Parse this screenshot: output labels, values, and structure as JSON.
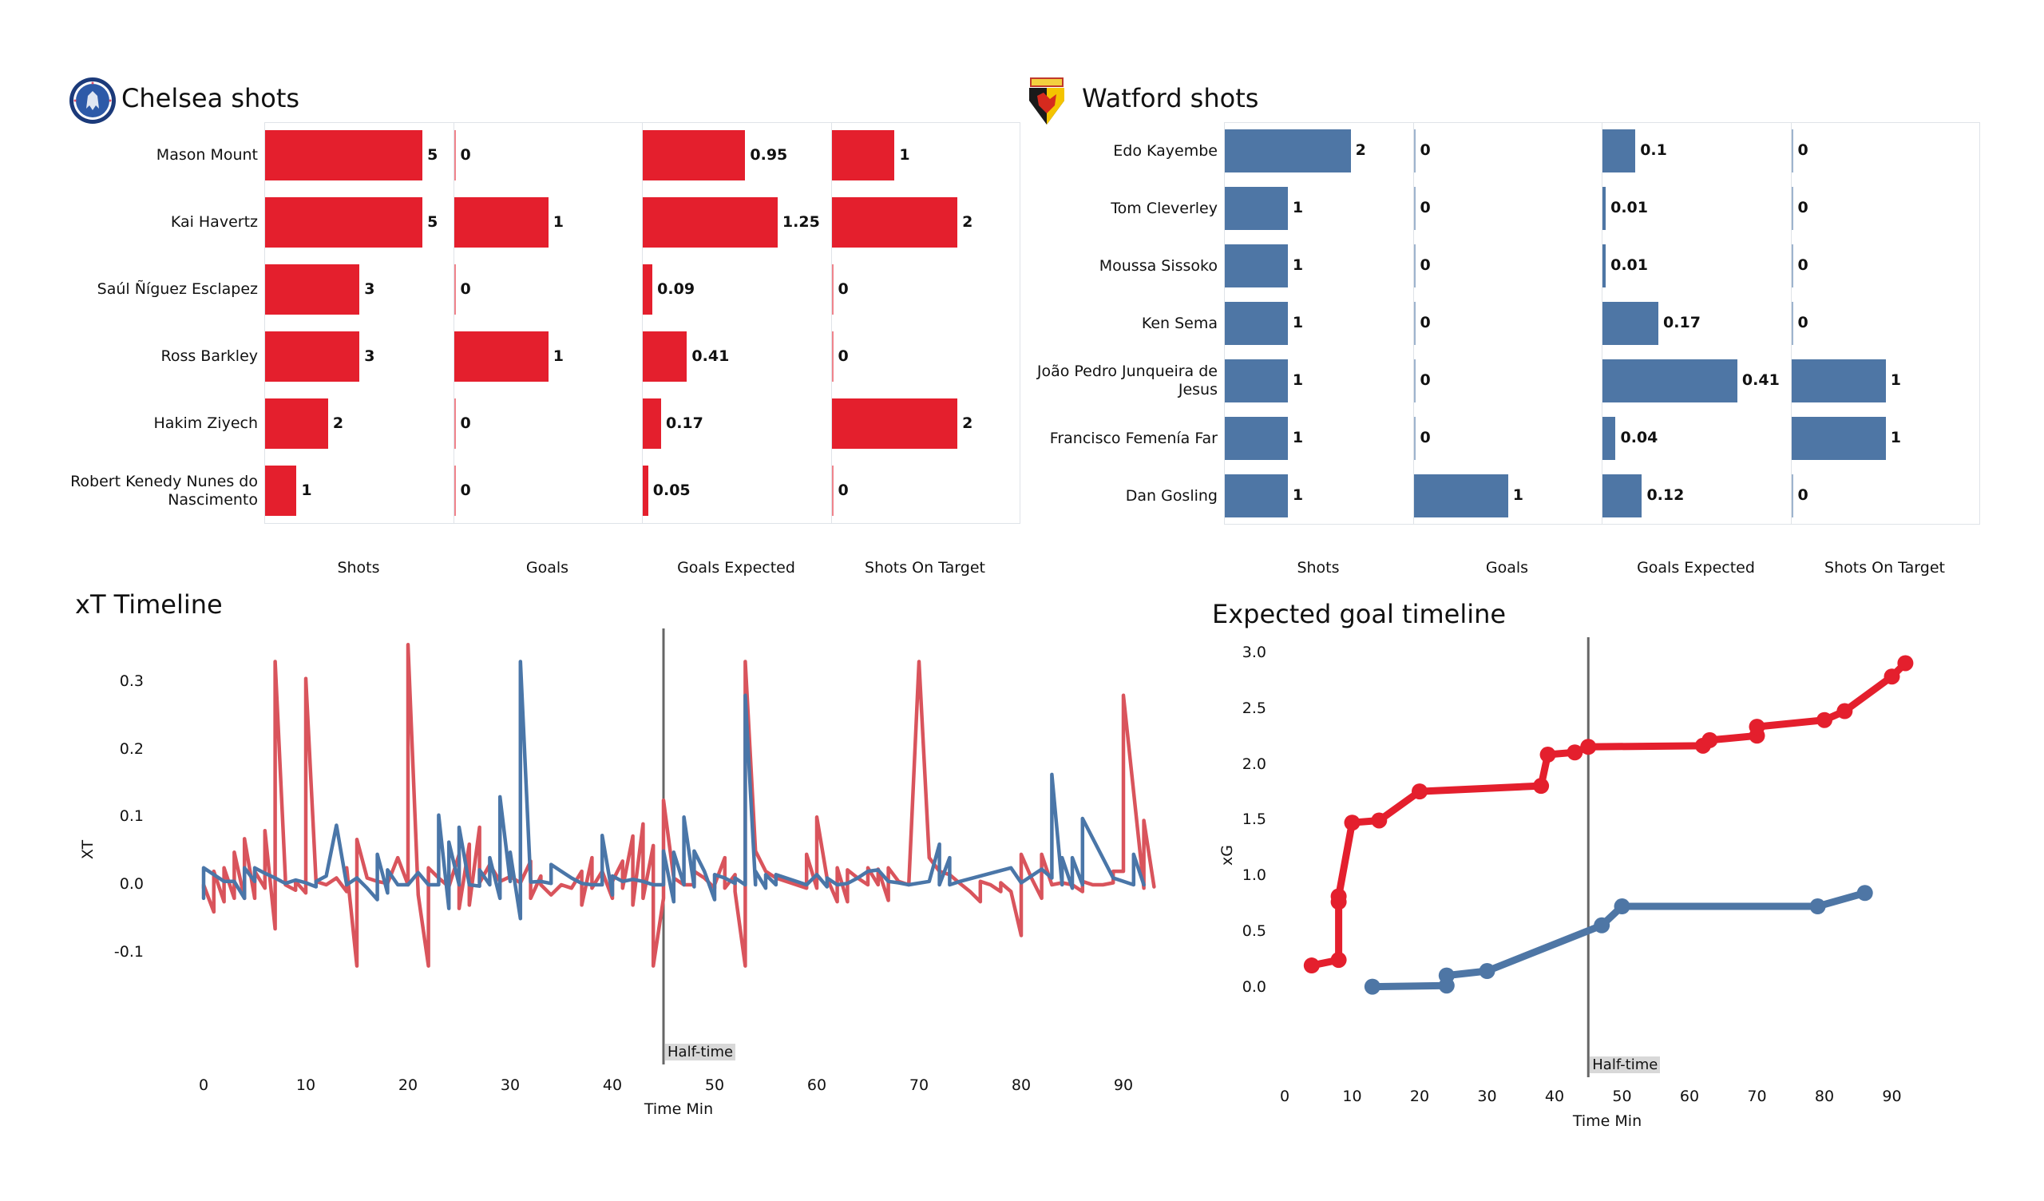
{
  "colors": {
    "chelsea_bar": "#e41f2d",
    "watford_bar": "#4e76a5",
    "chelsea_line": "#d9545c",
    "watford_line": "#4a76a8",
    "xg_chelsea": "#e41f2d",
    "xg_watford": "#4e76a5"
  },
  "chelsea": {
    "title": "Chelsea shots",
    "logo": "chelsea-crest-icon"
  },
  "watford": {
    "title": "Watford shots",
    "logo": "watford-crest-icon"
  },
  "chart_data": [
    {
      "type": "bar",
      "orientation": "horizontal",
      "title": "Chelsea shots",
      "metrics": [
        "Shots",
        "Goals",
        "Goals Expected",
        "Shots On Target"
      ],
      "categories": [
        "Mason Mount",
        "Kai Havertz",
        "Saúl Ñíguez Esclapez",
        "Ross Barkley",
        "Hakim Ziyech",
        "Robert Kenedy Nunes do Nascimento"
      ],
      "category_labels": [
        [
          "Mason Mount"
        ],
        [
          "Kai Havertz"
        ],
        [
          "Saúl Ñíguez Esclapez"
        ],
        [
          "Ross Barkley"
        ],
        [
          "Hakim Ziyech"
        ],
        [
          "Robert Kenedy Nunes do",
          "Nascimento"
        ]
      ],
      "series": [
        {
          "name": "Shots",
          "values": [
            5,
            5,
            3,
            3,
            2,
            1
          ],
          "labels": [
            "5",
            "5",
            "3",
            "3",
            "2",
            "1"
          ],
          "xlim": [
            0,
            6
          ]
        },
        {
          "name": "Goals",
          "values": [
            0,
            1,
            0,
            1,
            0,
            0
          ],
          "labels": [
            "0",
            "1",
            "0",
            "1",
            "0",
            "0"
          ],
          "xlim": [
            0,
            2
          ]
        },
        {
          "name": "Goals Expected",
          "values": [
            0.95,
            1.25,
            0.09,
            0.41,
            0.17,
            0.05
          ],
          "labels": [
            "0.95",
            "1.25",
            "0.09",
            "0.41",
            "0.17",
            "0.05"
          ],
          "xlim": [
            0,
            1.75
          ]
        },
        {
          "name": "Shots On Target",
          "values": [
            1,
            2,
            0,
            0,
            2,
            0
          ],
          "labels": [
            "1",
            "2",
            "0",
            "0",
            "2",
            "0"
          ],
          "xlim": [
            0,
            3
          ]
        }
      ]
    },
    {
      "type": "bar",
      "orientation": "horizontal",
      "title": "Watford shots",
      "metrics": [
        "Shots",
        "Goals",
        "Goals Expected",
        "Shots On Target"
      ],
      "categories": [
        "Edo Kayembe",
        "Tom Cleverley",
        "Moussa Sissoko",
        "Ken Sema",
        "João Pedro Junqueira de Jesus",
        "Francisco Femenía Far",
        "Dan Gosling"
      ],
      "category_labels": [
        [
          "Edo Kayembe"
        ],
        [
          "Tom Cleverley"
        ],
        [
          "Moussa Sissoko"
        ],
        [
          "Ken Sema"
        ],
        [
          "João Pedro Junqueira de",
          "Jesus"
        ],
        [
          "Francisco Femenía Far"
        ],
        [
          "Dan Gosling"
        ]
      ],
      "series": [
        {
          "name": "Shots",
          "values": [
            2,
            1,
            1,
            1,
            1,
            1,
            1
          ],
          "labels": [
            "2",
            "1",
            "1",
            "1",
            "1",
            "1",
            "1"
          ],
          "xlim": [
            0,
            3
          ]
        },
        {
          "name": "Goals",
          "values": [
            0,
            0,
            0,
            0,
            0,
            0,
            1
          ],
          "labels": [
            "0",
            "0",
            "0",
            "0",
            "0",
            "0",
            "1"
          ],
          "xlim": [
            0,
            2
          ]
        },
        {
          "name": "Goals Expected",
          "values": [
            0.1,
            0.01,
            0.01,
            0.17,
            0.41,
            0.04,
            0.12
          ],
          "labels": [
            "0.1",
            "0.01",
            "0.01",
            "0.17",
            "0.41",
            "0.04",
            "0.12"
          ],
          "xlim": [
            0,
            0.574
          ]
        },
        {
          "name": "Shots On Target",
          "values": [
            0,
            0,
            0,
            0,
            1,
            1,
            0
          ],
          "labels": [
            "0",
            "0",
            "0",
            "0",
            "1",
            "1",
            "0"
          ],
          "xlim": [
            0,
            2
          ]
        }
      ]
    },
    {
      "type": "line",
      "title": "xT Timeline",
      "xlabel": "Time Min",
      "ylabel": "XT",
      "xlim": [
        -5,
        94
      ],
      "ylim": [
        -0.15,
        0.37
      ],
      "xticks": [
        0,
        10,
        20,
        30,
        40,
        50,
        60,
        70,
        80,
        90
      ],
      "xtick_labels": [
        "0",
        "10",
        "20",
        "30",
        "40",
        "50",
        "60",
        "70",
        "80",
        "90"
      ],
      "yticks": [
        -0.1,
        0.0,
        0.1,
        0.2,
        0.3
      ],
      "ytick_labels": [
        "-0.1",
        "0.0",
        "0.1",
        "0.2",
        "0.3"
      ],
      "grid": false,
      "annotations": [
        {
          "x": 45,
          "type": "vline",
          "label": "Half-time"
        }
      ],
      "series": [
        {
          "name": "Chelsea",
          "x": [
            0,
            0,
            1,
            1,
            2,
            2,
            3,
            3,
            4,
            4,
            5,
            5,
            6,
            6,
            7,
            7,
            8,
            8,
            9,
            9,
            10,
            10,
            11,
            12,
            13,
            14,
            14,
            15,
            15,
            16,
            17,
            18,
            19,
            20,
            20,
            21,
            22,
            22,
            23,
            24,
            25,
            25,
            26,
            26,
            27,
            27,
            28,
            29,
            30,
            31,
            32,
            32,
            33,
            33,
            34,
            35,
            36,
            37,
            37,
            38,
            38,
            39,
            40,
            40,
            41,
            41,
            42,
            42,
            43,
            43,
            44,
            44,
            45,
            45,
            46,
            47,
            48,
            48,
            49,
            50,
            50,
            51,
            51,
            52,
            52,
            53,
            53,
            54,
            55,
            56,
            57,
            58,
            59,
            59,
            60,
            60,
            61,
            62,
            62,
            63,
            63,
            64,
            65,
            65,
            66,
            66,
            67,
            67,
            68,
            69,
            70,
            71,
            72,
            73,
            74,
            75,
            76,
            76,
            77,
            78,
            78,
            79,
            80,
            80,
            81,
            82,
            82,
            83,
            84,
            85,
            86,
            86,
            87,
            88,
            89,
            89,
            90,
            90,
            92,
            92,
            93
          ],
          "y": [
            -0.005,
            -0.0,
            -0.04,
            0.02,
            -0.025,
            0.025,
            -0.02,
            0.048,
            -0.02,
            0.068,
            -0.02,
            0.02,
            -0.005,
            0.08,
            -0.065,
            0.33,
            0.01,
            -0.0,
            -0.008,
            0.005,
            -0.012,
            0.305,
            0.005,
            0.0,
            0.01,
            -0.01,
            0.025,
            -0.12,
            0.067,
            0.01,
            0.005,
            0.002,
            0.04,
            0.0,
            0.355,
            -0.015,
            -0.12,
            0.025,
            0.01,
            -0.003,
            0.045,
            -0.035,
            0.06,
            -0.03,
            0.085,
            0.003,
            0.03,
            0.005,
            0.012,
            0.003,
            0.035,
            -0.02,
            0.013,
            0.0,
            -0.015,
            0.0,
            -0.005,
            0.02,
            -0.03,
            0.04,
            -0.005,
            0.02,
            -0.02,
            0.005,
            0.035,
            -0.005,
            0.072,
            -0.03,
            0.09,
            -0.02,
            0.058,
            -0.12,
            -0.02,
            0.125,
            0.01,
            0.0,
            0.0,
            0.02,
            0.01,
            -0.005,
            0.0,
            0.04,
            -0.005,
            0.015,
            -0.01,
            -0.12,
            0.33,
            0.05,
            0.02,
            0.01,
            0.005,
            0.0,
            -0.005,
            0.045,
            -0.005,
            0.1,
            0.01,
            -0.025,
            0.025,
            -0.025,
            0.022,
            0.01,
            0.0,
            0.025,
            0.0,
            0.023,
            -0.023,
            0.025,
            0.005,
            0.0,
            0.33,
            0.04,
            0.02,
            0.015,
            0.002,
            -0.01,
            -0.025,
            0.005,
            0.0,
            -0.01,
            0.003,
            -0.01,
            -0.075,
            0.045,
            0.01,
            -0.02,
            0.045,
            0.0,
            0.003,
            0.0,
            -0.01,
            0.005,
            0.0,
            0.0,
            0.003,
            0.02,
            0.02,
            0.28,
            -0.005,
            0.095,
            -0.003
          ]
        },
        {
          "name": "Watford",
          "x": [
            0,
            0,
            1,
            2,
            3,
            4,
            4,
            5,
            5,
            6,
            7,
            8,
            9,
            10,
            11,
            11,
            12,
            13,
            14,
            15,
            16,
            17,
            17,
            18,
            18,
            19,
            20,
            21,
            22,
            23,
            23,
            24,
            24,
            25,
            25,
            26,
            27,
            27,
            28,
            28,
            29,
            29,
            30,
            30,
            31,
            31,
            32,
            33,
            34,
            34,
            35,
            36,
            37,
            38,
            39,
            39,
            40,
            40,
            41,
            42,
            43,
            44,
            45,
            45,
            46,
            46,
            47,
            47,
            48,
            48,
            49,
            50,
            50,
            51,
            52,
            52,
            53,
            53,
            54,
            54,
            55,
            55,
            56,
            56,
            57,
            58,
            59,
            60,
            61,
            61,
            62,
            63,
            64,
            65,
            66,
            67,
            68,
            69,
            71,
            72,
            72,
            73,
            73,
            74,
            79,
            80,
            82,
            83,
            83,
            84,
            84,
            85,
            85,
            86,
            86,
            89,
            91,
            91,
            92
          ],
          "y": [
            -0.02,
            0.025,
            0.015,
            0.005,
            0.005,
            -0.02,
            0.025,
            0.005,
            0.025,
            0.017,
            0.01,
            0.002,
            0.007,
            0.003,
            -0.003,
            0.005,
            0.013,
            0.088,
            0.0,
            0.01,
            -0.005,
            -0.022,
            0.045,
            -0.012,
            0.022,
            0.0,
            0.0,
            0.018,
            0.0,
            0.0,
            0.103,
            -0.035,
            0.063,
            0.0,
            0.085,
            0.0,
            -0.002,
            0.022,
            0.0,
            0.04,
            -0.02,
            0.13,
            0.005,
            0.048,
            -0.05,
            0.33,
            0.004,
            0.005,
            0.002,
            0.03,
            0.02,
            0.01,
            0.002,
            0.0,
            0.0,
            0.073,
            -0.015,
            0.013,
            0.005,
            0.008,
            0.005,
            0.0,
            0.0,
            0.05,
            -0.025,
            0.048,
            0.0,
            0.1,
            -0.003,
            0.05,
            0.02,
            -0.022,
            0.015,
            0.01,
            0.002,
            0.01,
            0.0,
            0.28,
            0.0,
            0.02,
            -0.005,
            0.015,
            0.0,
            0.015,
            0.01,
            0.005,
            0.0,
            0.015,
            -0.003,
            0.01,
            0.0,
            0.002,
            0.01,
            0.02,
            0.022,
            0.005,
            0.003,
            0.0,
            0.005,
            0.06,
            0.0,
            0.04,
            0.0,
            0.005,
            0.025,
            0.003,
            0.023,
            0.01,
            0.163,
            0.0,
            0.04,
            -0.005,
            0.04,
            0.0,
            0.098,
            0.01,
            0.0,
            0.045,
            0.0
          ]
        }
      ]
    },
    {
      "type": "line",
      "title": "Expected goal timeline",
      "xlabel": "Time Min",
      "ylabel": "xG",
      "xlim": [
        -4,
        100
      ],
      "ylim": [
        -0.2,
        3.2
      ],
      "xticks": [
        0,
        10,
        20,
        30,
        40,
        50,
        60,
        70,
        80,
        90
      ],
      "xtick_labels": [
        "0",
        "10",
        "20",
        "30",
        "40",
        "50",
        "60",
        "70",
        "80",
        "90"
      ],
      "yticks": [
        0.0,
        0.5,
        1.0,
        1.5,
        2.0,
        2.5,
        3.0
      ],
      "ytick_labels": [
        "0.0",
        "0.5",
        "1.0",
        "1.5",
        "2.0",
        "2.5",
        "3.0"
      ],
      "grid": false,
      "markers": true,
      "annotations": [
        {
          "x": 45,
          "type": "vline",
          "label": "Half-time"
        }
      ],
      "series": [
        {
          "name": "Chelsea",
          "x": [
            4,
            8,
            8,
            8,
            10,
            14,
            20,
            38,
            39,
            43,
            45,
            62,
            63,
            70,
            70,
            80,
            83,
            90,
            92
          ],
          "y": [
            0.2,
            0.25,
            0.77,
            0.82,
            1.48,
            1.5,
            1.76,
            1.81,
            2.09,
            2.11,
            2.16,
            2.17,
            2.22,
            2.26,
            2.34,
            2.4,
            2.48,
            2.79,
            2.91
          ]
        },
        {
          "name": "Watford",
          "x": [
            13,
            24,
            24,
            30,
            47,
            50,
            79,
            86
          ],
          "y": [
            0.01,
            0.02,
            0.11,
            0.15,
            0.56,
            0.73,
            0.73,
            0.85
          ]
        }
      ]
    }
  ]
}
